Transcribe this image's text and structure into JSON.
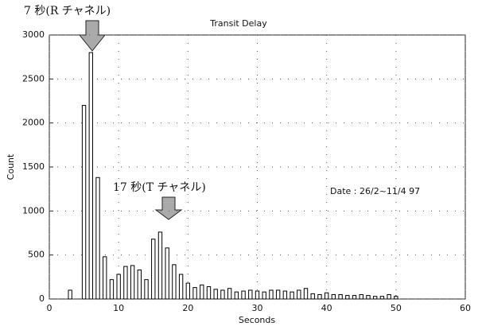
{
  "chart_data": {
    "type": "histogram",
    "title": "Transit Delay",
    "xlabel": "Seconds",
    "ylabel": "Count",
    "annotations": [
      "7 秒(R チャネル)",
      "17 秒(T チャネル)",
      "Date : 26/2~11/4 97"
    ],
    "bins": [
      2.5,
      3.5,
      4.5,
      5.5,
      6.5,
      7.5,
      8.5,
      9.5,
      10.5,
      11.5,
      12.5,
      13.5,
      14.5,
      15.5,
      16.5,
      17.5,
      18.5,
      19.5,
      20.5,
      21.5,
      22.5,
      23.5,
      24.5,
      25.5,
      26.5,
      27.5,
      28.5,
      29.5,
      30.5,
      31.5,
      32.5,
      33.5,
      34.5,
      35.5,
      36.5,
      37.5,
      38.5,
      39.5,
      40.5,
      41.5,
      42.5,
      43.5,
      44.5,
      45.5,
      46.5,
      47.5,
      48.5,
      49.5,
      50.5
    ],
    "values": [
      100,
      0,
      2200,
      2800,
      1380,
      480,
      220,
      280,
      370,
      380,
      330,
      220,
      680,
      760,
      580,
      390,
      280,
      180,
      130,
      160,
      140,
      110,
      100,
      120,
      80,
      90,
      100,
      90,
      80,
      100,
      100,
      90,
      80,
      100,
      120,
      60,
      50,
      70,
      50,
      50,
      40,
      40,
      50,
      40,
      30,
      30,
      50,
      30
    ],
    "color": "#ffffff",
    "edgecolor": "#000000",
    "xlim": [
      0,
      60
    ],
    "ylim": [
      0,
      3000
    ],
    "xticks": [
      0,
      10,
      20,
      30,
      40,
      50,
      60
    ],
    "yticks": [
      0,
      500,
      1000,
      1500,
      2000,
      2500,
      3000
    ],
    "grid": true
  }
}
